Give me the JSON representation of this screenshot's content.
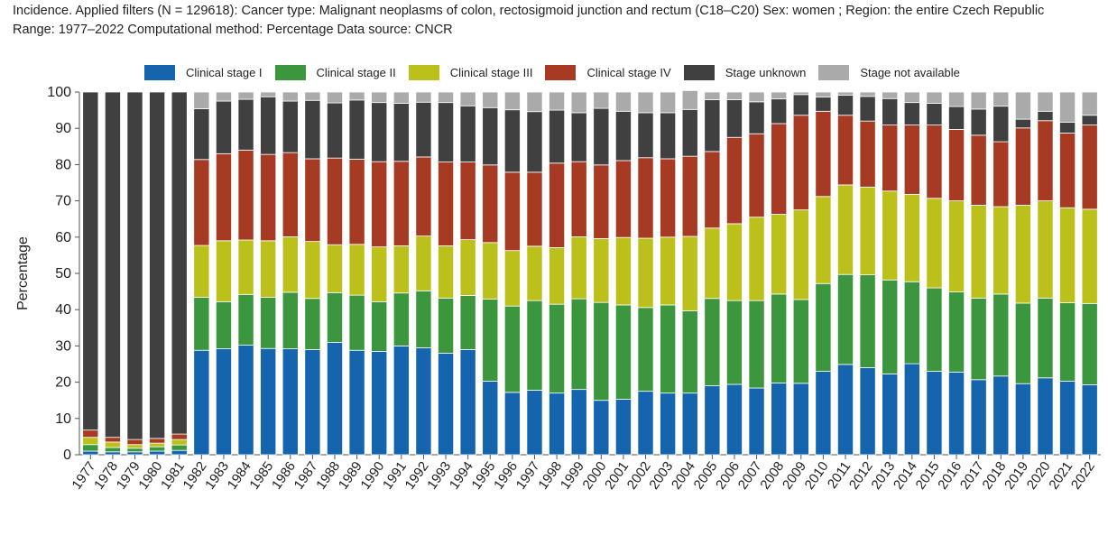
{
  "header": {
    "line1": "Incidence. Applied filters (N = 129618): Cancer type: Malignant neoplasms of colon, rectosigmoid junction and rectum (C18–C20) Sex: women ; Region: the entire Czech Republic",
    "line2": "Range: 1977–2022 Computational method: Percentage Data source: CNCR"
  },
  "chart_data": {
    "type": "bar",
    "stacked": true,
    "ylabel": "Percentage",
    "ylim": [
      0,
      100
    ],
    "yticks": [
      0,
      10,
      20,
      30,
      40,
      50,
      60,
      70,
      80,
      90,
      100
    ],
    "legend_position": "top",
    "categories": [
      "1977",
      "1978",
      "1979",
      "1980",
      "1981",
      "1982",
      "1983",
      "1984",
      "1985",
      "1986",
      "1987",
      "1988",
      "1989",
      "1990",
      "1991",
      "1992",
      "1993",
      "1994",
      "1995",
      "1996",
      "1997",
      "1998",
      "1999",
      "2000",
      "2001",
      "2002",
      "2003",
      "2004",
      "2005",
      "2006",
      "2007",
      "2008",
      "2009",
      "2010",
      "2011",
      "2012",
      "2013",
      "2014",
      "2015",
      "2016",
      "2017",
      "2018",
      "2019",
      "2020",
      "2021",
      "2022"
    ],
    "series": [
      {
        "name": "Clinical stage I",
        "color": "#1464ae",
        "values": [
          1.0,
          0.8,
          0.8,
          1.0,
          1.2,
          28.8,
          29.2,
          30.2,
          29.3,
          29.2,
          29.0,
          31.0,
          28.8,
          28.5,
          30.0,
          29.5,
          28.0,
          29.0,
          20.3,
          17.2,
          17.8,
          17.0,
          18.0,
          15.0,
          15.3,
          17.5,
          17.0,
          17.0,
          19.0,
          19.4,
          18.4,
          19.8,
          19.7,
          23.0,
          24.9,
          24.0,
          22.3,
          25.1,
          23.0,
          22.8,
          20.7,
          21.7,
          19.6,
          21.2,
          20.3,
          19.3
        ]
      },
      {
        "name": "Clinical stage II",
        "color": "#3c963e",
        "values": [
          1.8,
          1.2,
          1.0,
          1.2,
          1.5,
          14.6,
          13.0,
          14.0,
          14.1,
          15.6,
          14.1,
          13.7,
          15.2,
          13.7,
          14.6,
          15.7,
          15.2,
          14.9,
          22.6,
          23.8,
          24.7,
          24.5,
          25.0,
          27.0,
          26.0,
          23.1,
          24.3,
          22.7,
          24.1,
          23.1,
          24.1,
          24.5,
          23.1,
          24.2,
          24.8,
          25.6,
          25.9,
          22.6,
          23.0,
          22.1,
          22.5,
          22.6,
          22.2,
          22.0,
          21.6,
          22.4
        ]
      },
      {
        "name": "Clinical stage III",
        "color": "#bcc01a",
        "values": [
          2.0,
          1.5,
          1.0,
          1.0,
          1.5,
          14.3,
          16.8,
          15.0,
          15.6,
          15.3,
          15.7,
          13.2,
          14.0,
          15.1,
          13.0,
          15.1,
          14.4,
          15.4,
          15.6,
          15.3,
          15.0,
          15.6,
          17.1,
          17.6,
          18.6,
          19.1,
          18.7,
          20.5,
          19.4,
          21.2,
          23.0,
          22.0,
          24.7,
          24.0,
          24.7,
          24.2,
          24.5,
          24.1,
          24.7,
          25.1,
          25.6,
          24.1,
          27.0,
          26.8,
          26.2,
          26.0
        ]
      },
      {
        "name": "Clinical stage IV",
        "color": "#a73a22",
        "values": [
          2.0,
          1.3,
          1.4,
          1.3,
          1.5,
          23.7,
          24.0,
          24.8,
          23.8,
          23.2,
          22.8,
          23.9,
          23.5,
          23.5,
          23.3,
          21.8,
          23.1,
          21.4,
          21.4,
          21.6,
          20.4,
          23.3,
          20.7,
          20.3,
          21.2,
          22.2,
          21.6,
          22.1,
          21.1,
          23.8,
          23.0,
          25.0,
          26.1,
          23.5,
          19.2,
          18.2,
          18.2,
          19.1,
          20.2,
          19.7,
          19.3,
          17.9,
          21.3,
          22.1,
          20.6,
          23.2
        ]
      },
      {
        "name": "Stage unknown",
        "color": "#404040",
        "values": [
          93.2,
          95.2,
          95.8,
          95.5,
          94.3,
          14.0,
          14.5,
          14.0,
          15.9,
          14.2,
          16.1,
          15.2,
          16.3,
          16.3,
          16.0,
          15.1,
          16.4,
          15.5,
          15.8,
          17.2,
          16.7,
          14.6,
          13.5,
          15.6,
          13.6,
          12.4,
          12.7,
          12.9,
          14.3,
          10.4,
          8.8,
          6.8,
          5.7,
          3.9,
          5.5,
          6.8,
          7.3,
          6.2,
          6.0,
          6.3,
          7.2,
          9.8,
          2.4,
          2.6,
          3.0,
          2.7
        ]
      },
      {
        "name": "Stage not available",
        "color": "#aaaaaa",
        "values": [
          0.0,
          0.0,
          0.0,
          0.0,
          0.0,
          4.6,
          2.5,
          2.0,
          1.3,
          2.5,
          2.3,
          3.0,
          2.2,
          2.9,
          3.1,
          2.8,
          2.9,
          3.8,
          4.3,
          4.9,
          5.4,
          5.0,
          5.7,
          4.5,
          5.3,
          5.7,
          5.7,
          5.2,
          2.1,
          2.1,
          2.7,
          1.9,
          0.7,
          1.4,
          0.9,
          1.2,
          1.8,
          2.9,
          3.1,
          4.0,
          4.7,
          3.9,
          7.5,
          5.3,
          8.3,
          6.4
        ]
      }
    ]
  }
}
